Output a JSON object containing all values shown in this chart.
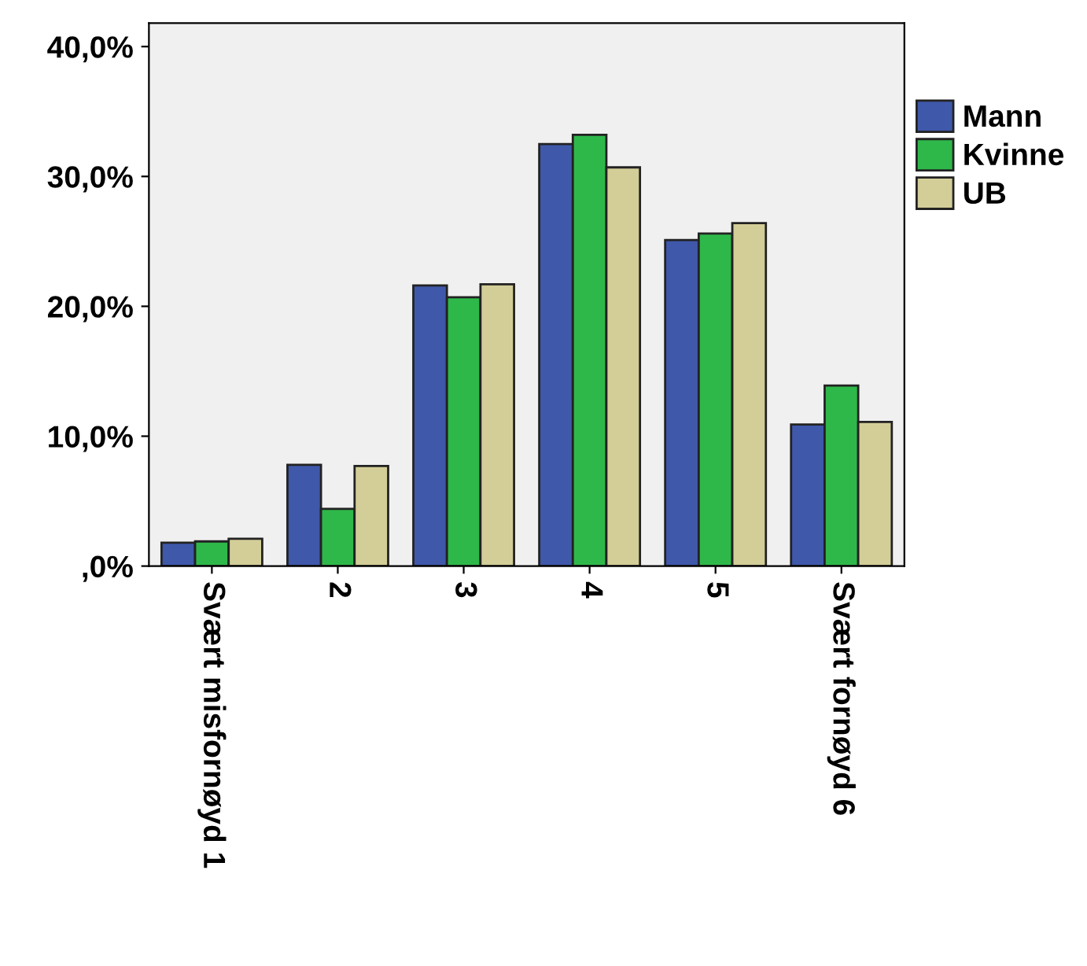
{
  "chart_data": {
    "type": "bar",
    "categories": [
      "Svært misfornøyd 1",
      "2",
      "3",
      "4",
      "5",
      "Svært fornøyd 6"
    ],
    "series": [
      {
        "name": "Mann",
        "color": "#3f58aa",
        "values": [
          1.8,
          7.8,
          21.6,
          32.5,
          25.1,
          10.9
        ]
      },
      {
        "name": "Kvinne",
        "color": "#2fb84a",
        "values": [
          1.9,
          4.4,
          20.7,
          33.2,
          25.6,
          13.9
        ]
      },
      {
        "name": "UB",
        "color": "#d3ce98",
        "values": [
          2.1,
          7.7,
          21.7,
          30.7,
          26.4,
          11.1
        ]
      }
    ],
    "ylim": [
      0,
      41.8
    ],
    "yticks": [
      {
        "value": 0,
        "label": ",0%"
      },
      {
        "value": 10,
        "label": "10,0%"
      },
      {
        "value": 20,
        "label": "20,0%"
      },
      {
        "value": 30,
        "label": "30,0%"
      },
      {
        "value": 40,
        "label": "40,0%"
      }
    ],
    "grid": false,
    "legend": "top right"
  }
}
